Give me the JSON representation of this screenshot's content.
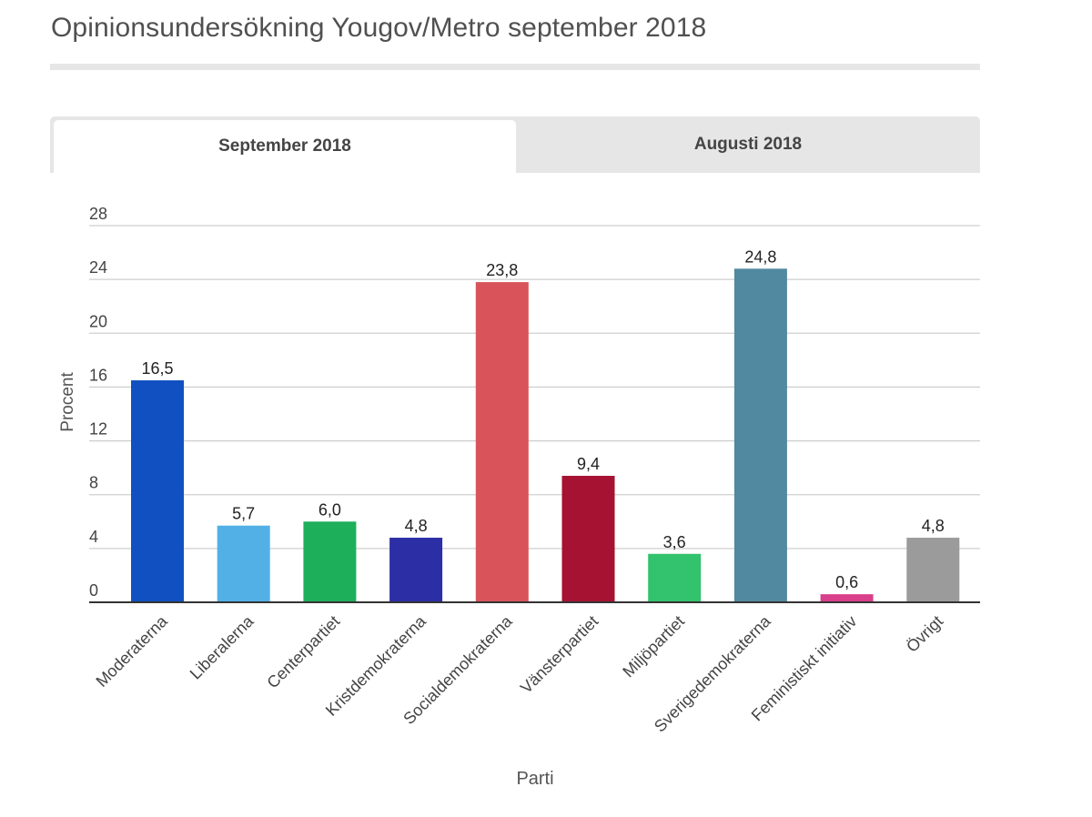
{
  "page": {
    "title": "Opinionsundersökning Yougov/Metro september 2018"
  },
  "tabs": [
    {
      "label": "September 2018",
      "active": true
    },
    {
      "label": "Augusti 2018",
      "active": false
    }
  ],
  "chart_data": {
    "type": "bar",
    "title": "",
    "xlabel": "Parti",
    "ylabel": "Procent",
    "ylim": [
      0,
      28
    ],
    "yticks": [
      0,
      4,
      8,
      12,
      16,
      20,
      24,
      28
    ],
    "grid": true,
    "categories": [
      "Moderaterna",
      "Liberalerna",
      "Centerpartiet",
      "Kristdemokraterna",
      "Socialdemokraterna",
      "Vänsterpartiet",
      "Miljöpartiet",
      "Sverigedemokraterna",
      "Feministiskt initiativ",
      "Övrigt"
    ],
    "values": [
      16.5,
      5.7,
      6.0,
      4.8,
      23.8,
      9.4,
      3.6,
      24.8,
      0.6,
      4.8
    ],
    "value_labels": [
      "16,5",
      "5,7",
      "6,0",
      "4,8",
      "23,8",
      "9,4",
      "3,6",
      "24,8",
      "0,6",
      "4,8"
    ],
    "colors": [
      "#1050c0",
      "#52b0e6",
      "#1eaf5a",
      "#2c2ea6",
      "#d9545a",
      "#a61231",
      "#33c26d",
      "#5189a0",
      "#d93f8b",
      "#9b9b9b"
    ]
  }
}
